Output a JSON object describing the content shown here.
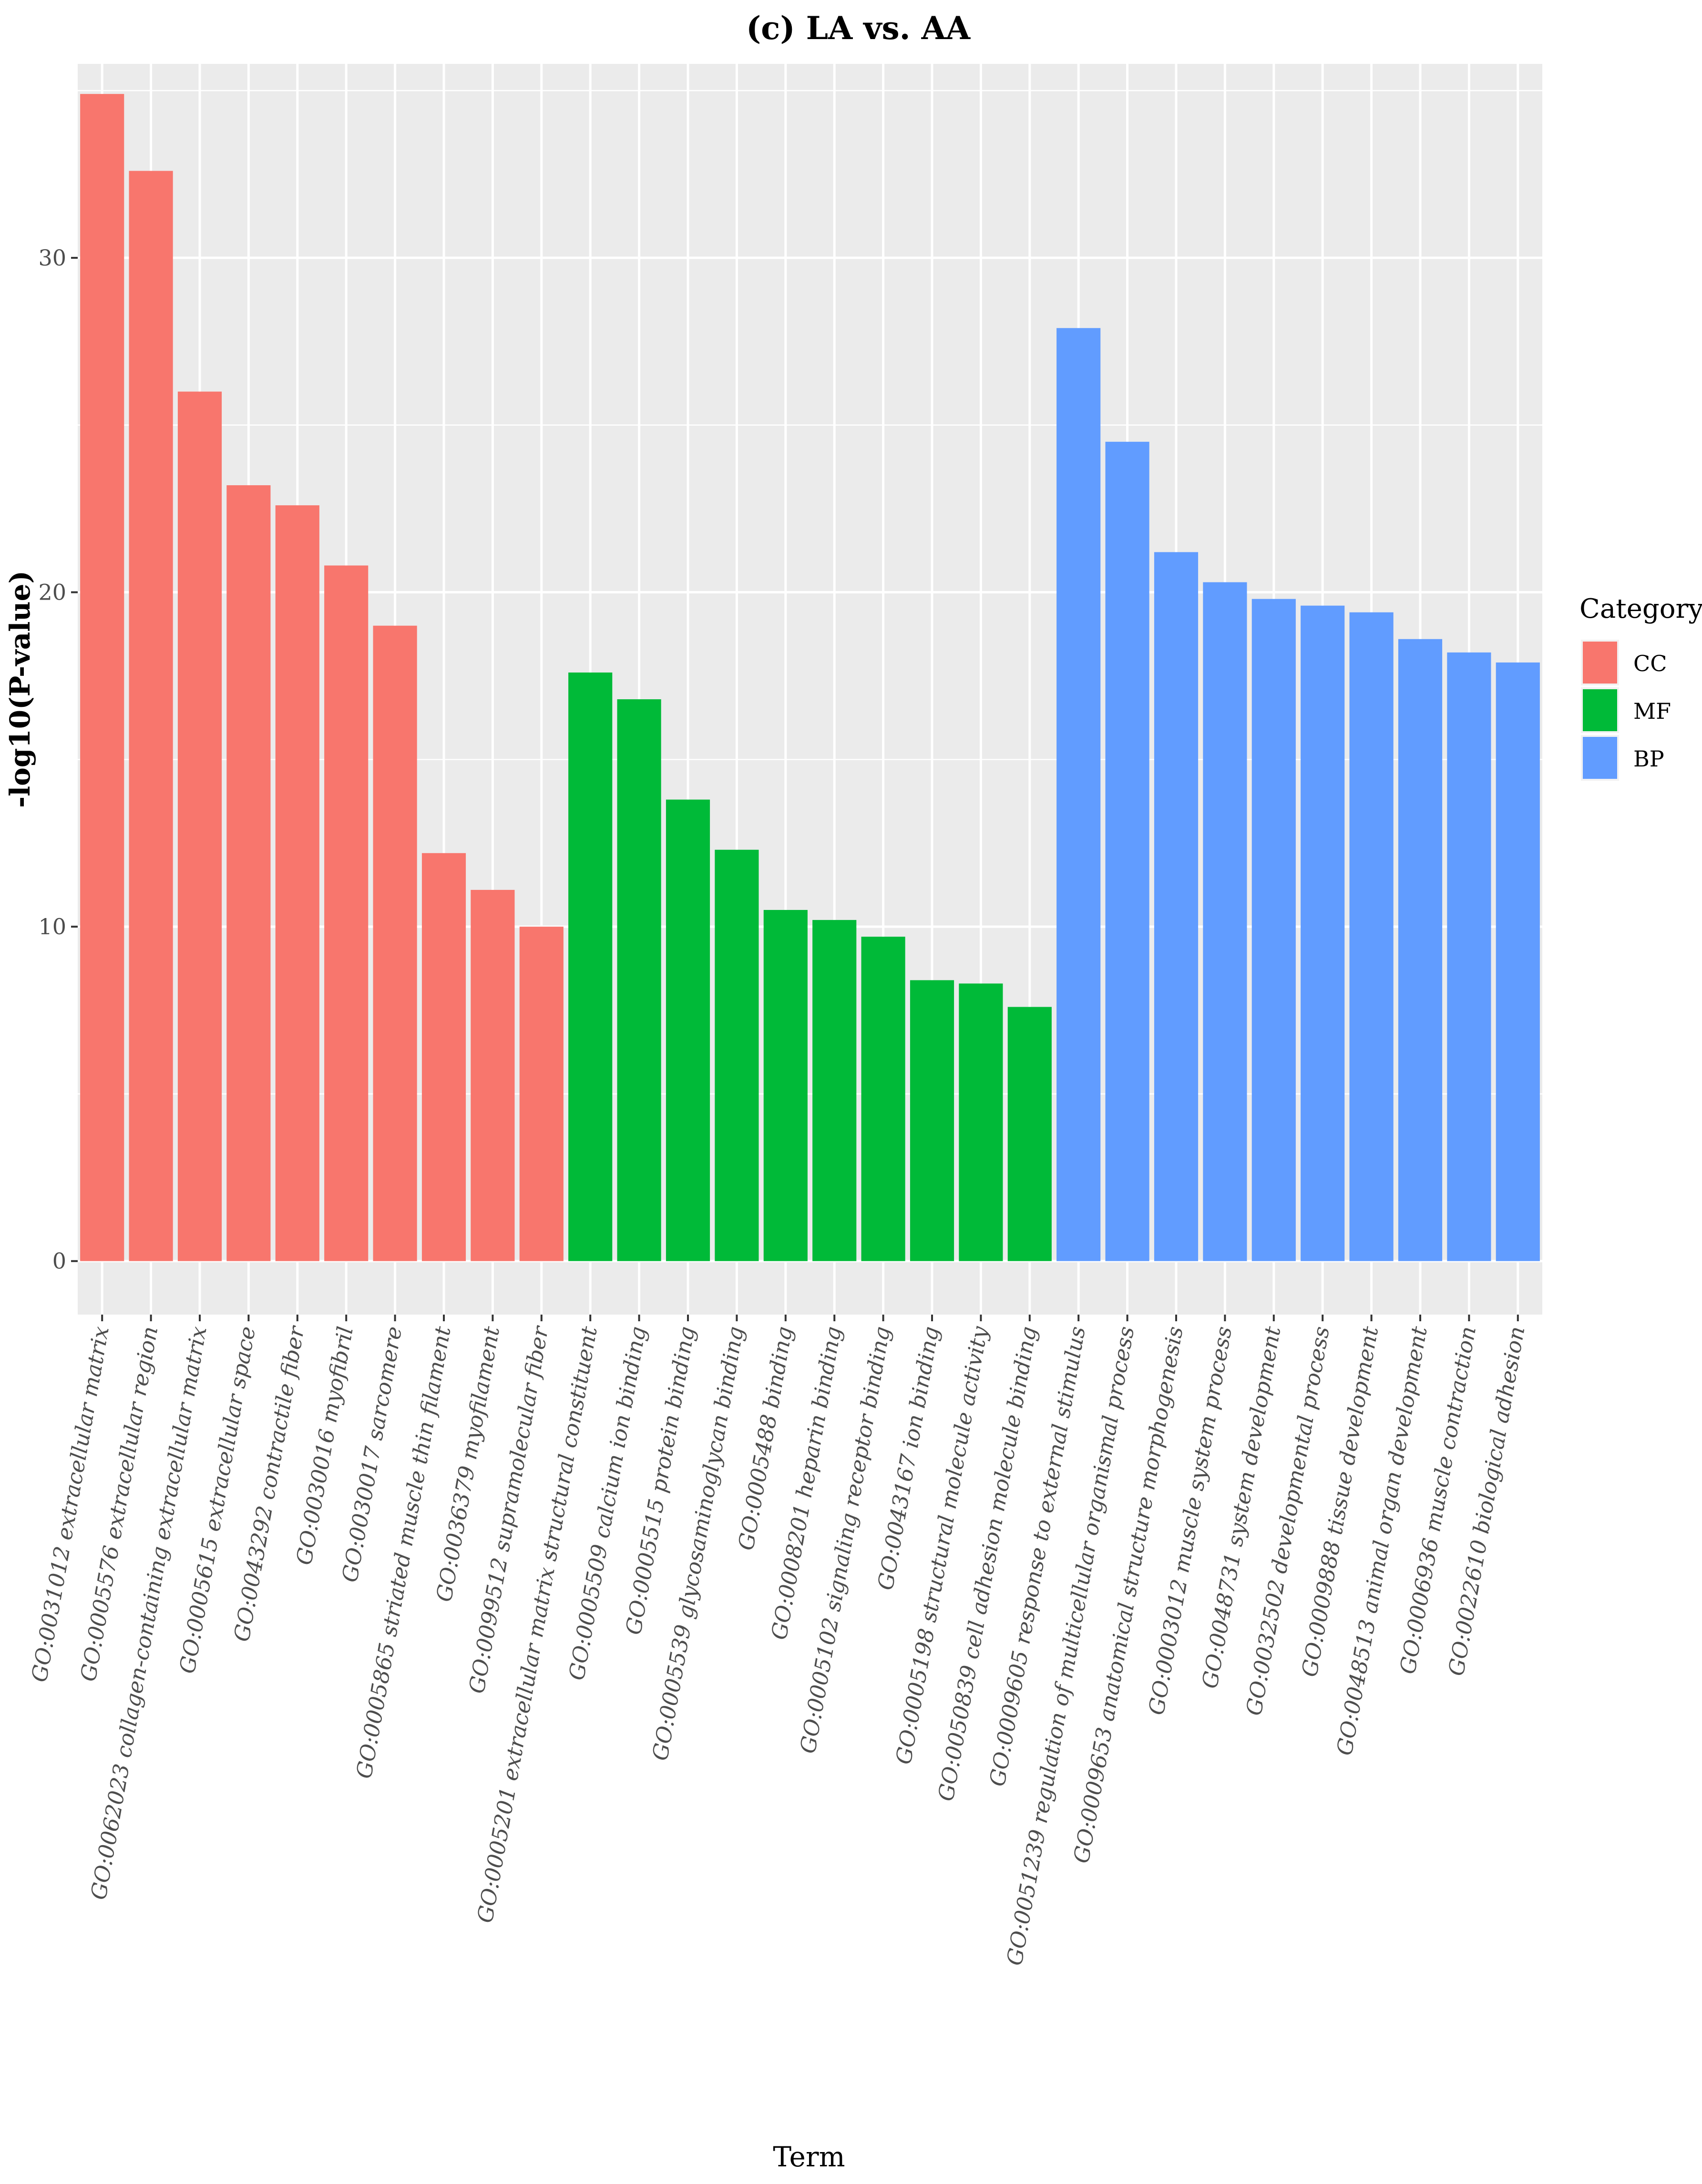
{
  "chart_data": {
    "type": "bar",
    "title": "(c) LA vs. AA",
    "xlabel": "Term",
    "ylabel": "-log10(P-value)",
    "ylim": [
      -1.6,
      35.8
    ],
    "yticks": [
      0,
      10,
      20,
      30
    ],
    "grid": true,
    "legend": {
      "title": "Category",
      "placement": "right",
      "entries": [
        {
          "name": "CC",
          "color": "#F8766D"
        },
        {
          "name": "MF",
          "color": "#00BA38"
        },
        {
          "name": "BP",
          "color": "#619CFF"
        }
      ]
    },
    "categories": [
      "GO:0031012 extracellular matrix",
      "GO:0005576 extracellular region",
      "GO:0062023 collagen-containing extracellular matrix",
      "GO:0005615 extracellular space",
      "GO:0043292 contractile fiber",
      "GO:0030016 myofibril",
      "GO:0030017 sarcomere",
      "GO:0005865 striated muscle thin filament",
      "GO:0036379 myofilament",
      "GO:0099512 supramolecular fiber",
      "GO:0005201 extracellular matrix structural constituent",
      "GO:0005509 calcium ion binding",
      "GO:0005515 protein binding",
      "GO:0005539 glycosaminoglycan binding",
      "GO:0005488 binding",
      "GO:0008201 heparin binding",
      "GO:0005102 signaling receptor binding",
      "GO:0043167 ion binding",
      "GO:0005198 structural molecule activity",
      "GO:0050839 cell adhesion molecule binding",
      "GO:0009605 response to external stimulus",
      "GO:0051239 regulation of multicellular organismal process",
      "GO:0009653 anatomical structure morphogenesis",
      "GO:0003012 muscle system process",
      "GO:0048731 system development",
      "GO:0032502 developmental process",
      "GO:0009888 tissue development",
      "GO:0048513 animal organ development",
      "GO:0006936 muscle contraction",
      "GO:0022610 biological adhesion"
    ],
    "categoryGroups": [
      "CC",
      "CC",
      "CC",
      "CC",
      "CC",
      "CC",
      "CC",
      "CC",
      "CC",
      "CC",
      "MF",
      "MF",
      "MF",
      "MF",
      "MF",
      "MF",
      "MF",
      "MF",
      "MF",
      "MF",
      "BP",
      "BP",
      "BP",
      "BP",
      "BP",
      "BP",
      "BP",
      "BP",
      "BP",
      "BP"
    ],
    "values": [
      34.9,
      32.6,
      26.0,
      23.2,
      22.6,
      20.8,
      19.0,
      12.2,
      11.1,
      10.0,
      17.6,
      16.8,
      13.8,
      12.3,
      10.5,
      10.2,
      9.7,
      8.4,
      8.3,
      7.6,
      27.9,
      24.5,
      21.2,
      20.3,
      19.8,
      19.6,
      19.4,
      18.6,
      18.2,
      17.9
    ]
  }
}
